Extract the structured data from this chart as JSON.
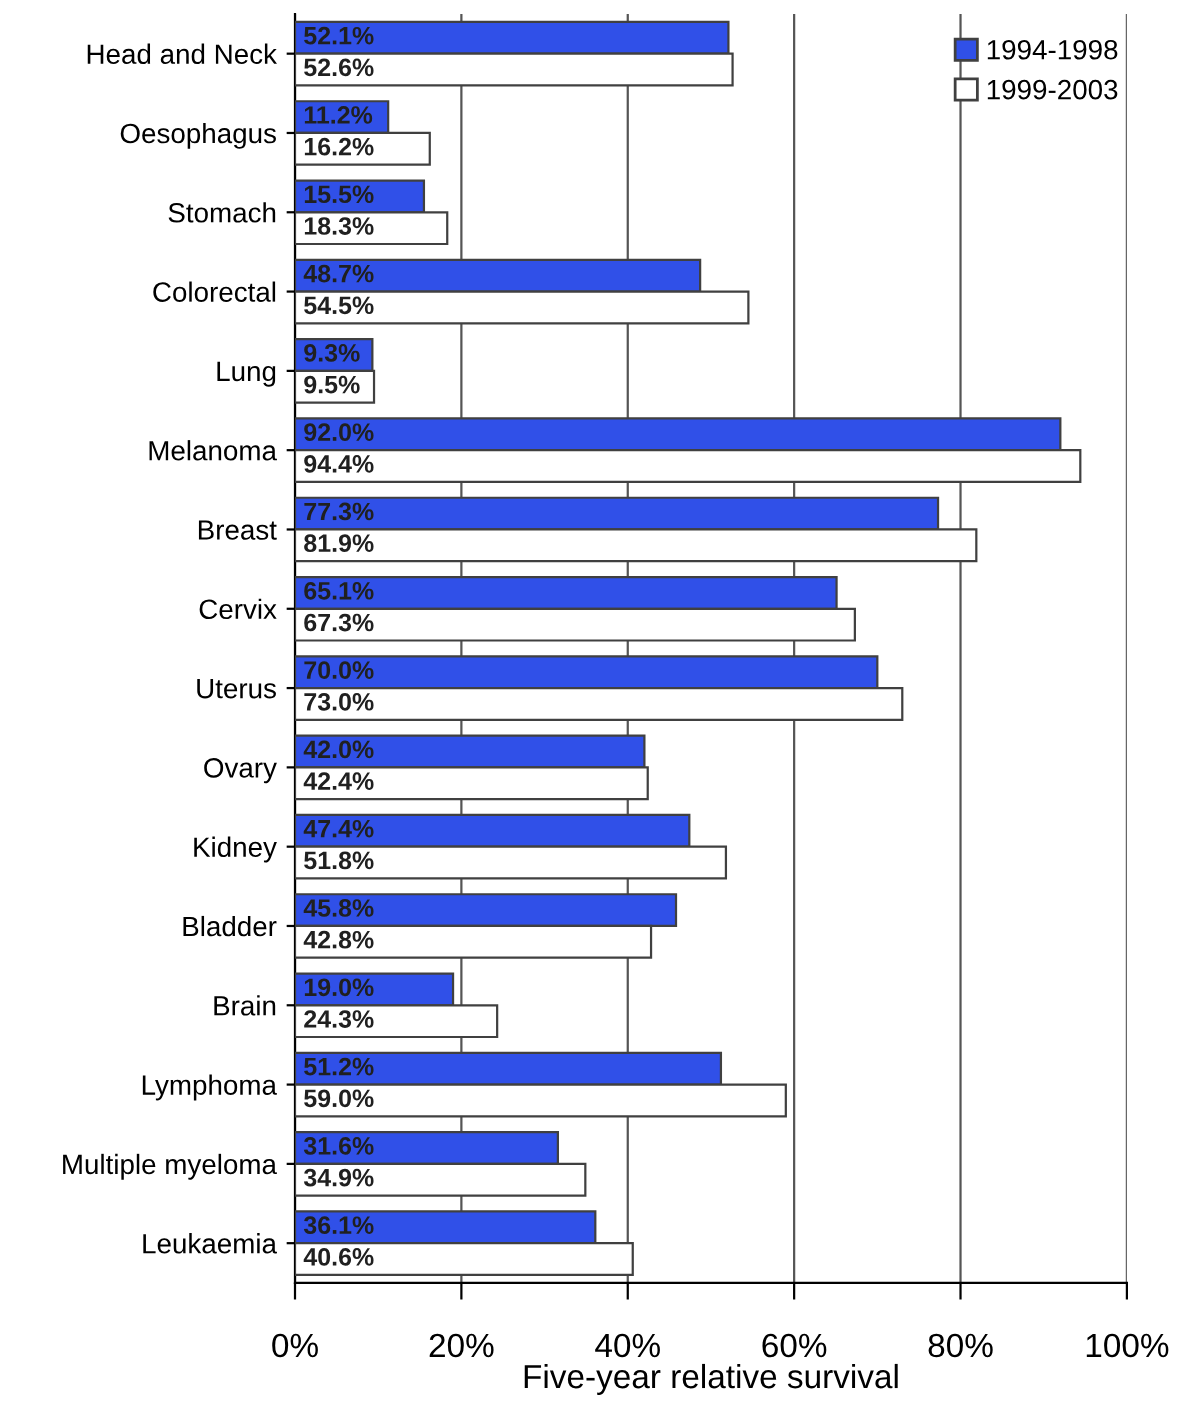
{
  "chart_data": {
    "type": "bar",
    "orientation": "horizontal",
    "xlabel": "Five-year relative survival",
    "categories": [
      "Head and Neck",
      "Oesophagus",
      "Stomach",
      "Colorectal",
      "Lung",
      "Melanoma",
      "Breast",
      "Cervix",
      "Uterus",
      "Ovary",
      "Kidney",
      "Bladder",
      "Brain",
      "Lymphoma",
      "Multiple myeloma",
      "Leukaemia"
    ],
    "series": [
      {
        "name": "1994-1998",
        "color": "#3050e8",
        "values": [
          52.1,
          11.2,
          15.5,
          48.7,
          9.3,
          92.0,
          77.3,
          65.1,
          70.0,
          42.0,
          47.4,
          45.8,
          19.0,
          51.2,
          31.6,
          36.1
        ],
        "value_labels": [
          "52.1%",
          "11.2%",
          "15.5%",
          "48.7%",
          "9.3%",
          "92.0%",
          "77.3%",
          "65.1%",
          "70.0%",
          "42.0%",
          "47.4%",
          "45.8%",
          "19.0%",
          "51.2%",
          "31.6%",
          "36.1%"
        ]
      },
      {
        "name": "1999-2003",
        "color": "#ffffff",
        "values": [
          52.6,
          16.2,
          18.3,
          54.5,
          9.5,
          94.4,
          81.9,
          67.3,
          73.0,
          42.4,
          51.8,
          42.8,
          24.3,
          59.0,
          34.9,
          40.6
        ],
        "value_labels": [
          "52.6%",
          "16.2%",
          "18.3%",
          "54.5%",
          "9.5%",
          "94.4%",
          "81.9%",
          "67.3%",
          "73.0%",
          "42.4%",
          "51.8%",
          "42.8%",
          "24.3%",
          "59.0%",
          "34.9%",
          "40.6%"
        ]
      }
    ],
    "xlim": [
      0,
      100
    ],
    "xticks": [
      {
        "value": 0,
        "label": "0%"
      },
      {
        "value": 20,
        "label": "20%"
      },
      {
        "value": 40,
        "label": "40%"
      },
      {
        "value": 60,
        "label": "60%"
      },
      {
        "value": 80,
        "label": "80%"
      },
      {
        "value": 100,
        "label": "100%"
      }
    ],
    "grid": "x",
    "legend": "top right"
  }
}
